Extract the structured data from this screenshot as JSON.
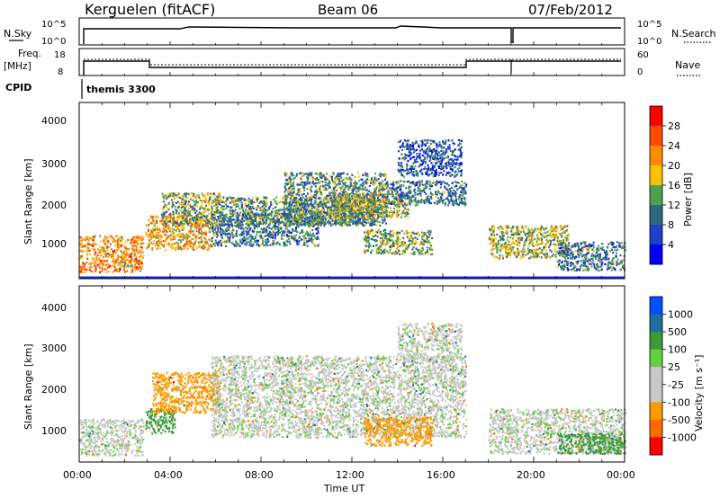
{
  "header": {
    "station": "Kerguelen (fitACF)",
    "beam": "Beam 06",
    "date": "07/Feb/2012"
  },
  "noise_panel": {
    "left_label": "N.Sky",
    "right_label": "N.Search",
    "left_ticks": [
      "10^5",
      "10^0"
    ],
    "right_ticks": [
      "10^5",
      "10^0"
    ]
  },
  "freq_panel": {
    "left_label_1": "Freq.",
    "left_label_2": "[MHz]",
    "right_label": "Nave",
    "left_ticks": [
      "18",
      "8"
    ],
    "right_ticks": [
      "60",
      "0"
    ]
  },
  "cpid": {
    "label": "CPID",
    "value": "themis 3300"
  },
  "power_panel": {
    "ylabel": "Slant Range [km]",
    "yticks": [
      "4000",
      "3000",
      "2000",
      "1000"
    ],
    "colorbar_label": "Power [dB]",
    "colorbar_ticks": [
      "28",
      "24",
      "20",
      "16",
      "12",
      "8",
      "4"
    ],
    "colorbar_colors": [
      "#ff0000",
      "#ff4a00",
      "#ff8c00",
      "#ffc000",
      "#4ea04e",
      "#2a6a7a",
      "#1e40c8",
      "#0000ff"
    ]
  },
  "velocity_panel": {
    "ylabel": "Slant Range [km]",
    "yticks": [
      "4000",
      "3000",
      "2000",
      "1000"
    ],
    "colorbar_label": "Velocity [m s⁻¹]",
    "colorbar_ticks": [
      "1000",
      "500",
      "100",
      "25",
      "-25",
      "-100",
      "-500",
      "-1000"
    ],
    "colorbar_colors": [
      "#0050ff",
      "#1f6ea0",
      "#3a9a3a",
      "#64d040",
      "#c8c8c8",
      "#c8c8c8",
      "#ff9a00",
      "#ff6a00",
      "#ff0000"
    ]
  },
  "xaxis": {
    "ticks": [
      "00:00",
      "04:00",
      "08:00",
      "12:00",
      "16:00",
      "20:00",
      "00:00"
    ],
    "label": "Time UT"
  },
  "chart_data": [
    {
      "type": "heatmap",
      "title": "Power",
      "ylabel": "Slant Range [km]",
      "xlabel": "Time UT",
      "xlim_hours": [
        0,
        24
      ],
      "ylim": [
        180,
        4500
      ],
      "colorbar": {
        "label": "Power [dB]",
        "range": [
          0,
          32
        ]
      },
      "blobs": [
        {
          "t0": 0.0,
          "t1": 2.8,
          "r0": 350,
          "r1": 1250,
          "level": 24
        },
        {
          "t0": 2.9,
          "t1": 5.8,
          "r0": 900,
          "r1": 1750,
          "level": 22
        },
        {
          "t0": 3.6,
          "t1": 6.2,
          "r0": 1500,
          "r1": 2300,
          "level": 16
        },
        {
          "t0": 5.8,
          "t1": 10.5,
          "r0": 1000,
          "r1": 1800,
          "level": 12
        },
        {
          "t0": 6.0,
          "t1": 13.0,
          "r0": 1500,
          "r1": 2200,
          "level": 14
        },
        {
          "t0": 9.0,
          "t1": 13.5,
          "r0": 1500,
          "r1": 2800,
          "level": 14
        },
        {
          "t0": 11.0,
          "t1": 14.5,
          "r0": 1700,
          "r1": 2300,
          "level": 18
        },
        {
          "t0": 12.5,
          "t1": 15.5,
          "r0": 800,
          "r1": 1400,
          "level": 16
        },
        {
          "t0": 13.5,
          "t1": 17.0,
          "r0": 2000,
          "r1": 2600,
          "level": 12
        },
        {
          "t0": 14.0,
          "t1": 16.8,
          "r0": 2700,
          "r1": 3600,
          "level": 10
        },
        {
          "t0": 18.0,
          "t1": 21.5,
          "r0": 700,
          "r1": 1500,
          "level": 18
        },
        {
          "t0": 21.0,
          "t1": 24.0,
          "r0": 400,
          "r1": 1100,
          "level": 12
        }
      ]
    },
    {
      "type": "heatmap",
      "title": "Velocity",
      "ylabel": "Slant Range [km]",
      "xlabel": "Time UT",
      "xlim_hours": [
        0,
        24
      ],
      "ylim": [
        180,
        4500
      ],
      "colorbar": {
        "label": "Velocity [m s⁻¹]",
        "range": [
          -1000,
          1000
        ]
      },
      "blobs": [
        {
          "t0": 0.0,
          "t1": 2.8,
          "r0": 350,
          "r1": 1250,
          "velocity": 0
        },
        {
          "t0": 2.9,
          "t1": 4.2,
          "r0": 900,
          "r1": 1500,
          "velocity": 150
        },
        {
          "t0": 3.2,
          "t1": 6.2,
          "r0": 1400,
          "r1": 2400,
          "velocity": -200
        },
        {
          "t0": 5.8,
          "t1": 17.0,
          "r0": 800,
          "r1": 2800,
          "velocity": 0
        },
        {
          "t0": 12.5,
          "t1": 15.5,
          "r0": 600,
          "r1": 1300,
          "velocity": -150
        },
        {
          "t0": 14.0,
          "t1": 16.8,
          "r0": 2700,
          "r1": 3600,
          "velocity": 0
        },
        {
          "t0": 18.0,
          "t1": 24.0,
          "r0": 400,
          "r1": 1500,
          "velocity": 0
        },
        {
          "t0": 21.0,
          "t1": 24.0,
          "r0": 400,
          "r1": 900,
          "velocity": 150
        }
      ]
    }
  ]
}
